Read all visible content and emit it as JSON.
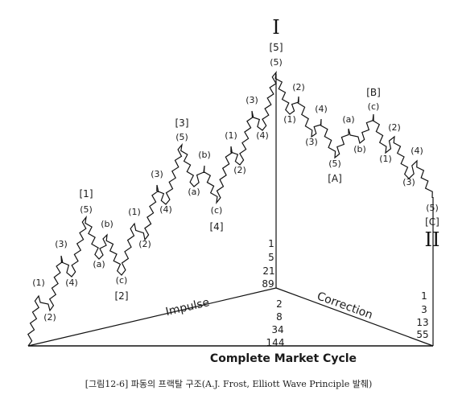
{
  "diagram": {
    "top_marker": "I",
    "bottom_marker": "II",
    "peak_labels": [
      "[5]",
      "(5)"
    ],
    "end_labels": [
      "(5)",
      "[C]"
    ],
    "impulse_wave_labels": {
      "w1": [
        "[1]",
        "(5)"
      ],
      "w2": [
        "(c)",
        "[2]"
      ],
      "w3": [
        "[3]",
        "(5)"
      ],
      "w4": [
        "(c)",
        "[4]"
      ],
      "sub_1": [
        "(1)",
        "(2)",
        "(3)",
        "(4)",
        "(a)",
        "(b)"
      ],
      "sub_3": [
        "(1)",
        "(2)",
        "(3)",
        "(4)",
        "(a)",
        "(b)"
      ],
      "sub_5": [
        "(1)",
        "(2)",
        "(3)",
        "(4)"
      ]
    },
    "correction_wave_labels": {
      "A": [
        "(5)",
        "[A]"
      ],
      "B": [
        "[B]",
        "(c)"
      ],
      "sub_A": [
        "(1)",
        "(2)",
        "(3)",
        "(4)"
      ],
      "sub_B": [
        "(a)",
        "(b)"
      ],
      "sub_C": [
        "(1)",
        "(2)",
        "(3)",
        "(4)"
      ]
    },
    "impulse_counts": [
      "1",
      "5",
      "21",
      "89"
    ],
    "correction_counts": [
      "1",
      "3",
      "13",
      "55"
    ],
    "total_counts": [
      "2",
      "8",
      "34",
      "144"
    ],
    "impulse_label": "Impulse",
    "correction_label": "Correction",
    "cycle_label": "Complete Market Cycle"
  },
  "caption": "[그림12-6] 파동의 프랙탈 구조(A.J. Frost, Elliott Wave Principle 발췌)"
}
